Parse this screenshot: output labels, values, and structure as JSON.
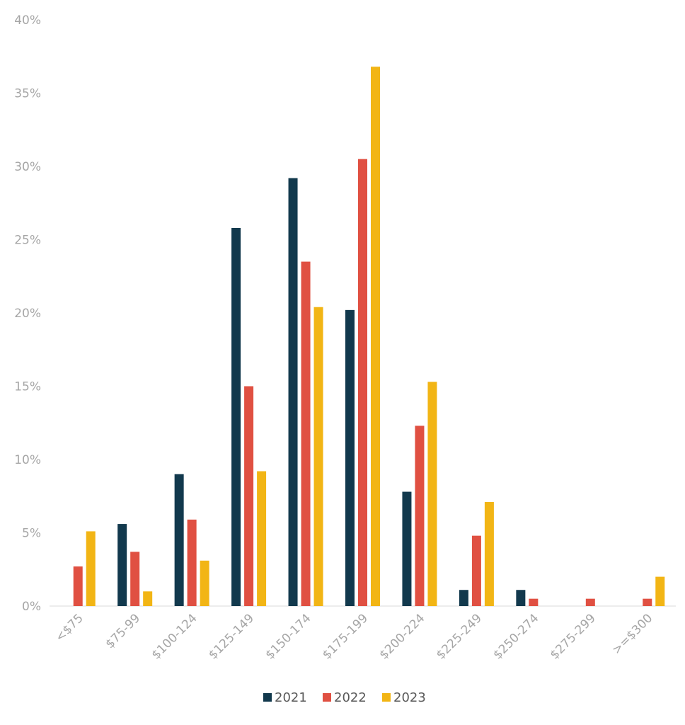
{
  "chart_data": {
    "type": "bar",
    "categories": [
      "<$75",
      "$75-99",
      "$100-124",
      "$125-149",
      "$150-174",
      "$175-199",
      "$200-224",
      "$225-249",
      "$250-274",
      "$275-299",
      ">=$300"
    ],
    "series": [
      {
        "name": "2021",
        "color": "#12394d",
        "values": [
          0,
          5.6,
          9.0,
          25.8,
          29.2,
          20.2,
          7.8,
          1.1,
          1.1,
          0,
          0
        ]
      },
      {
        "name": "2022",
        "color": "#e05042",
        "values": [
          2.7,
          3.7,
          5.9,
          15.0,
          23.5,
          30.5,
          12.3,
          4.8,
          0.5,
          0.5,
          0.5
        ]
      },
      {
        "name": "2023",
        "color": "#f2b515",
        "values": [
          5.1,
          1.0,
          3.1,
          9.2,
          20.4,
          36.8,
          15.3,
          7.1,
          0,
          0,
          2.0
        ]
      }
    ],
    "y_ticks": [
      "0%",
      "5%",
      "10%",
      "15%",
      "20%",
      "25%",
      "30%",
      "35%",
      "40%"
    ],
    "ylim": [
      0,
      40
    ],
    "grid": false,
    "legend_position": "bottom-center",
    "title": "",
    "xlabel": "",
    "ylabel": ""
  }
}
